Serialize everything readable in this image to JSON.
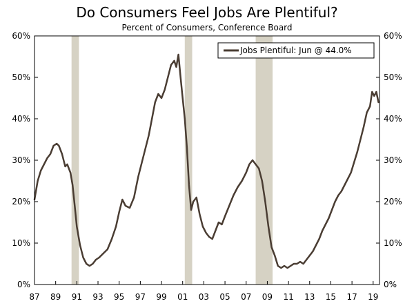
{
  "chart_data": {
    "type": "line",
    "title": "Do Consumers Feel Jobs Are Plentiful?",
    "subtitle": "Percent of Consumers, Conference Board",
    "xlabel": "",
    "ylabel": "",
    "xlim": [
      1987.0,
      2019.6
    ],
    "ylim": [
      0,
      60
    ],
    "y_ticks": [
      0,
      10,
      20,
      30,
      40,
      50,
      60
    ],
    "y_tick_labels": [
      "0%",
      "10%",
      "20%",
      "30%",
      "40%",
      "50%",
      "60%"
    ],
    "x_ticks": [
      1987,
      1989,
      1991,
      1993,
      1995,
      1997,
      1999,
      2001,
      2003,
      2005,
      2007,
      2009,
      2011,
      2013,
      2015,
      2017,
      2019
    ],
    "x_tick_labels": [
      "87",
      "89",
      "91",
      "93",
      "95",
      "97",
      "99",
      "01",
      "03",
      "05",
      "07",
      "09",
      "11",
      "13",
      "15",
      "17",
      "19"
    ],
    "grid": false,
    "legend_position": "top-right",
    "recessions": [
      {
        "start": 1990.5,
        "end": 1991.2
      },
      {
        "start": 2001.2,
        "end": 2001.9
      },
      {
        "start": 2007.9,
        "end": 2009.5
      }
    ],
    "series": [
      {
        "name": "Jobs Plentiful: Jun @ 44.0%",
        "color": "#4a3d33",
        "x": [
          1987.0,
          1987.3,
          1987.6,
          1987.9,
          1988.2,
          1988.5,
          1988.8,
          1989.1,
          1989.3,
          1989.6,
          1989.9,
          1990.1,
          1990.4,
          1990.6,
          1990.8,
          1991.0,
          1991.3,
          1991.6,
          1991.9,
          1992.2,
          1992.5,
          1992.8,
          1993.1,
          1993.5,
          1993.9,
          1994.3,
          1994.7,
          1995.0,
          1995.3,
          1995.6,
          1996.0,
          1996.4,
          1996.8,
          1997.2,
          1997.5,
          1997.8,
          1998.1,
          1998.4,
          1998.7,
          1999.0,
          1999.3,
          1999.6,
          1999.9,
          2000.2,
          2000.4,
          2000.6,
          2000.8,
          2001.0,
          2001.2,
          2001.4,
          2001.6,
          2001.8,
          2002.0,
          2002.3,
          2002.6,
          2002.9,
          2003.2,
          2003.5,
          2003.8,
          2004.1,
          2004.4,
          2004.7,
          2005.0,
          2005.4,
          2005.8,
          2006.2,
          2006.6,
          2007.0,
          2007.3,
          2007.6,
          2007.9,
          2008.2,
          2008.5,
          2008.8,
          2009.1,
          2009.4,
          2009.7,
          2010.0,
          2010.3,
          2010.6,
          2010.9,
          2011.2,
          2011.5,
          2011.8,
          2012.1,
          2012.4,
          2012.7,
          2013.0,
          2013.3,
          2013.6,
          2013.9,
          2014.2,
          2014.5,
          2014.8,
          2015.1,
          2015.4,
          2015.7,
          2016.0,
          2016.3,
          2016.6,
          2016.9,
          2017.2,
          2017.5,
          2017.8,
          2018.1,
          2018.4,
          2018.7,
          2018.9,
          2019.1,
          2019.3,
          2019.5
        ],
        "values": [
          20.5,
          25.0,
          27.5,
          29.0,
          30.5,
          31.5,
          33.5,
          34.0,
          33.5,
          31.5,
          28.5,
          29.0,
          27.0,
          24.0,
          19.0,
          14.0,
          9.5,
          6.5,
          5.0,
          4.5,
          5.0,
          6.0,
          6.5,
          7.5,
          8.5,
          11.0,
          14.0,
          17.5,
          20.5,
          19.0,
          18.5,
          21.0,
          26.0,
          30.0,
          33.0,
          36.0,
          40.0,
          44.0,
          46.0,
          45.0,
          47.0,
          50.0,
          53.0,
          54.0,
          52.5,
          55.5,
          50.0,
          45.0,
          40.0,
          33.0,
          24.0,
          18.0,
          20.0,
          21.0,
          17.0,
          14.0,
          12.5,
          11.5,
          11.0,
          13.0,
          15.0,
          14.5,
          16.5,
          19.0,
          21.5,
          23.5,
          25.0,
          27.0,
          29.0,
          30.0,
          29.0,
          28.0,
          25.0,
          20.0,
          14.0,
          9.0,
          7.0,
          4.5,
          4.0,
          4.5,
          4.0,
          4.5,
          5.0,
          5.0,
          5.5,
          5.0,
          6.0,
          7.0,
          8.0,
          9.5,
          11.0,
          13.0,
          14.5,
          16.0,
          18.0,
          20.0,
          21.5,
          22.5,
          24.0,
          25.5,
          27.0,
          29.5,
          32.0,
          35.0,
          38.0,
          41.5,
          43.0,
          46.5,
          45.5,
          46.5,
          44.0
        ]
      }
    ]
  }
}
